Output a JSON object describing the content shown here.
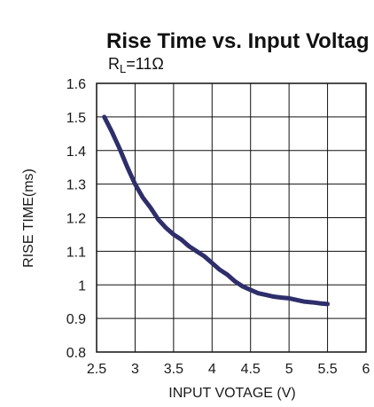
{
  "chart_data": {
    "type": "line",
    "title": "Rise Time vs. Input Voltag",
    "subtitle": {
      "main": "R",
      "sub": "L",
      "rest": "=11Ω"
    },
    "xlabel": "INPUT VOTAGE (V)",
    "ylabel": "RISE TIME(ms)",
    "xlim": [
      2.5,
      6
    ],
    "ylim": [
      0.8,
      1.6
    ],
    "x_ticks": [
      2.5,
      3,
      3.5,
      4,
      4.5,
      5,
      5.5,
      6
    ],
    "x_tick_labels": [
      "2.5",
      "3",
      "3.5",
      "4",
      "4.5",
      "5",
      "5.5",
      "6"
    ],
    "y_ticks": [
      0.8,
      0.9,
      1,
      1.1,
      1.2,
      1.3,
      1.4,
      1.5,
      1.6
    ],
    "y_tick_labels": [
      "0.8",
      "0.9",
      "1",
      "1.1",
      "1.2",
      "1.3",
      "1.4",
      "1.5",
      "1.6"
    ],
    "grid": true,
    "legend": "none",
    "line_color": "#2e2e6b",
    "series": [
      {
        "x": [
          2.6,
          2.7,
          2.8,
          2.9,
          3.0,
          3.1,
          3.2,
          3.3,
          3.4,
          3.5,
          3.6,
          3.7,
          3.8,
          3.9,
          4.0,
          4.1,
          4.2,
          4.3,
          4.4,
          4.5,
          4.6,
          4.7,
          4.8,
          4.9,
          5.0,
          5.1,
          5.2,
          5.3,
          5.4,
          5.5
        ],
        "y": [
          1.5,
          1.455,
          1.405,
          1.35,
          1.3,
          1.26,
          1.23,
          1.195,
          1.17,
          1.15,
          1.135,
          1.115,
          1.1,
          1.085,
          1.065,
          1.045,
          1.03,
          1.01,
          0.995,
          0.985,
          0.975,
          0.97,
          0.965,
          0.962,
          0.96,
          0.955,
          0.95,
          0.948,
          0.945,
          0.943
        ]
      }
    ]
  }
}
